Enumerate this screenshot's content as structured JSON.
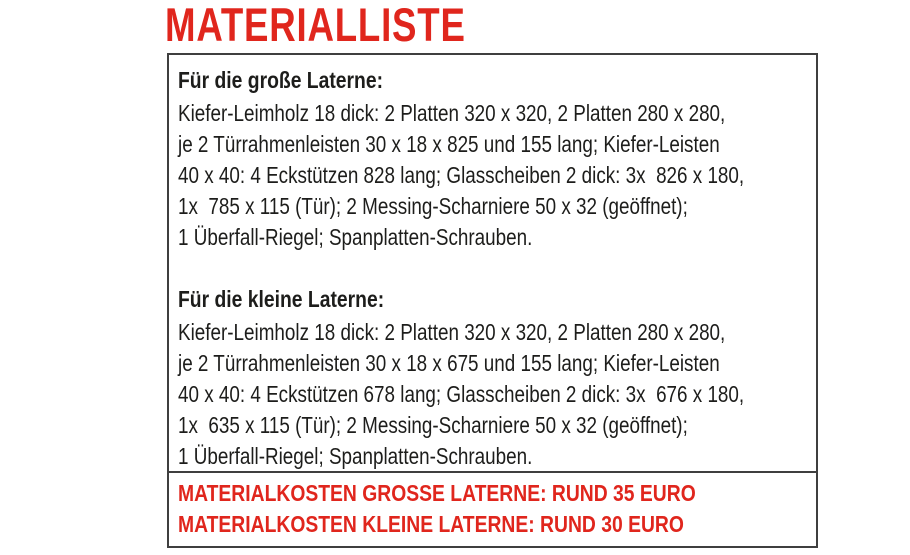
{
  "colors": {
    "accent_red": "#e0261d",
    "border_gray": "#3f3f3f",
    "text_black": "#1d1d1b",
    "background": "#ffffff"
  },
  "title": "MATERIALLISTE",
  "materials_box": {
    "sections": [
      {
        "heading": "Für die große Laterne:",
        "lines": [
          "Kiefer-Leimholz 18 dick: 2 Platten 320 x 320, 2 Platten 280 x 280,",
          "je 2 Türrahmenleisten 30 x 18 x 825 und 155 lang; Kiefer-Leisten",
          "40 x 40: 4 Eckstützen 828 lang; Glasscheiben 2 dick: 3x  826 x 180,",
          "1x  785 x 115 (Tür); 2 Messing-Scharniere 50 x 32 (geöffnet);",
          "1 Überfall-Riegel; Spanplatten-Schrauben."
        ]
      },
      {
        "heading": "Für die kleine Laterne:",
        "lines": [
          "Kiefer-Leimholz 18 dick: 2 Platten 320 x 320, 2 Platten 280 x 280,",
          "je 2 Türrahmenleisten 30 x 18 x 675 und 155 lang; Kiefer-Leisten",
          "40 x 40: 4 Eckstützen 678 lang; Glasscheiben 2 dick: 3x  676 x 180,",
          "1x  635 x 115 (Tür); 2 Messing-Scharniere 50 x 32 (geöffnet);",
          "1 Überfall-Riegel; Spanplatten-Schrauben."
        ]
      }
    ],
    "costs": [
      "MATERIALKOSTEN GROSSE LATERNE: RUND 35 EURO",
      "MATERIALKOSTEN KLEINE LATERNE: RUND 30 EURO"
    ]
  }
}
